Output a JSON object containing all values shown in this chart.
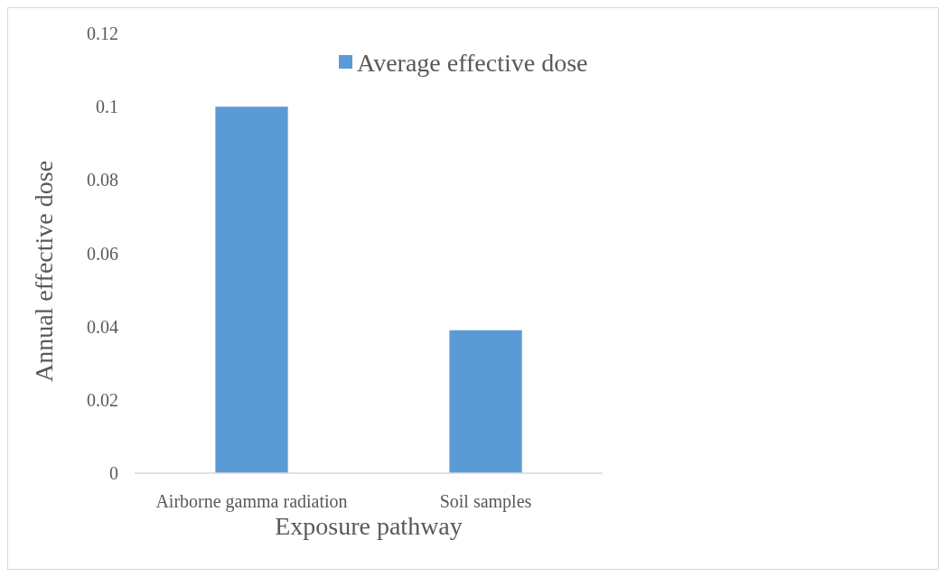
{
  "chart_data": {
    "type": "bar",
    "xlabel": "Exposure pathway",
    "ylabel": "Annual effective dose",
    "categories": [
      "Airborne gamma radiation",
      "Soil samples"
    ],
    "series": [
      {
        "name": "Average effective dose",
        "color": "#5b9bd5",
        "values": [
          0.1,
          0.039
        ]
      }
    ],
    "ylim": [
      0,
      0.12
    ],
    "yticks": [
      0,
      0.02,
      0.04,
      0.06,
      0.08,
      0.1,
      0.12
    ],
    "grid": false,
    "legend": "top right"
  }
}
